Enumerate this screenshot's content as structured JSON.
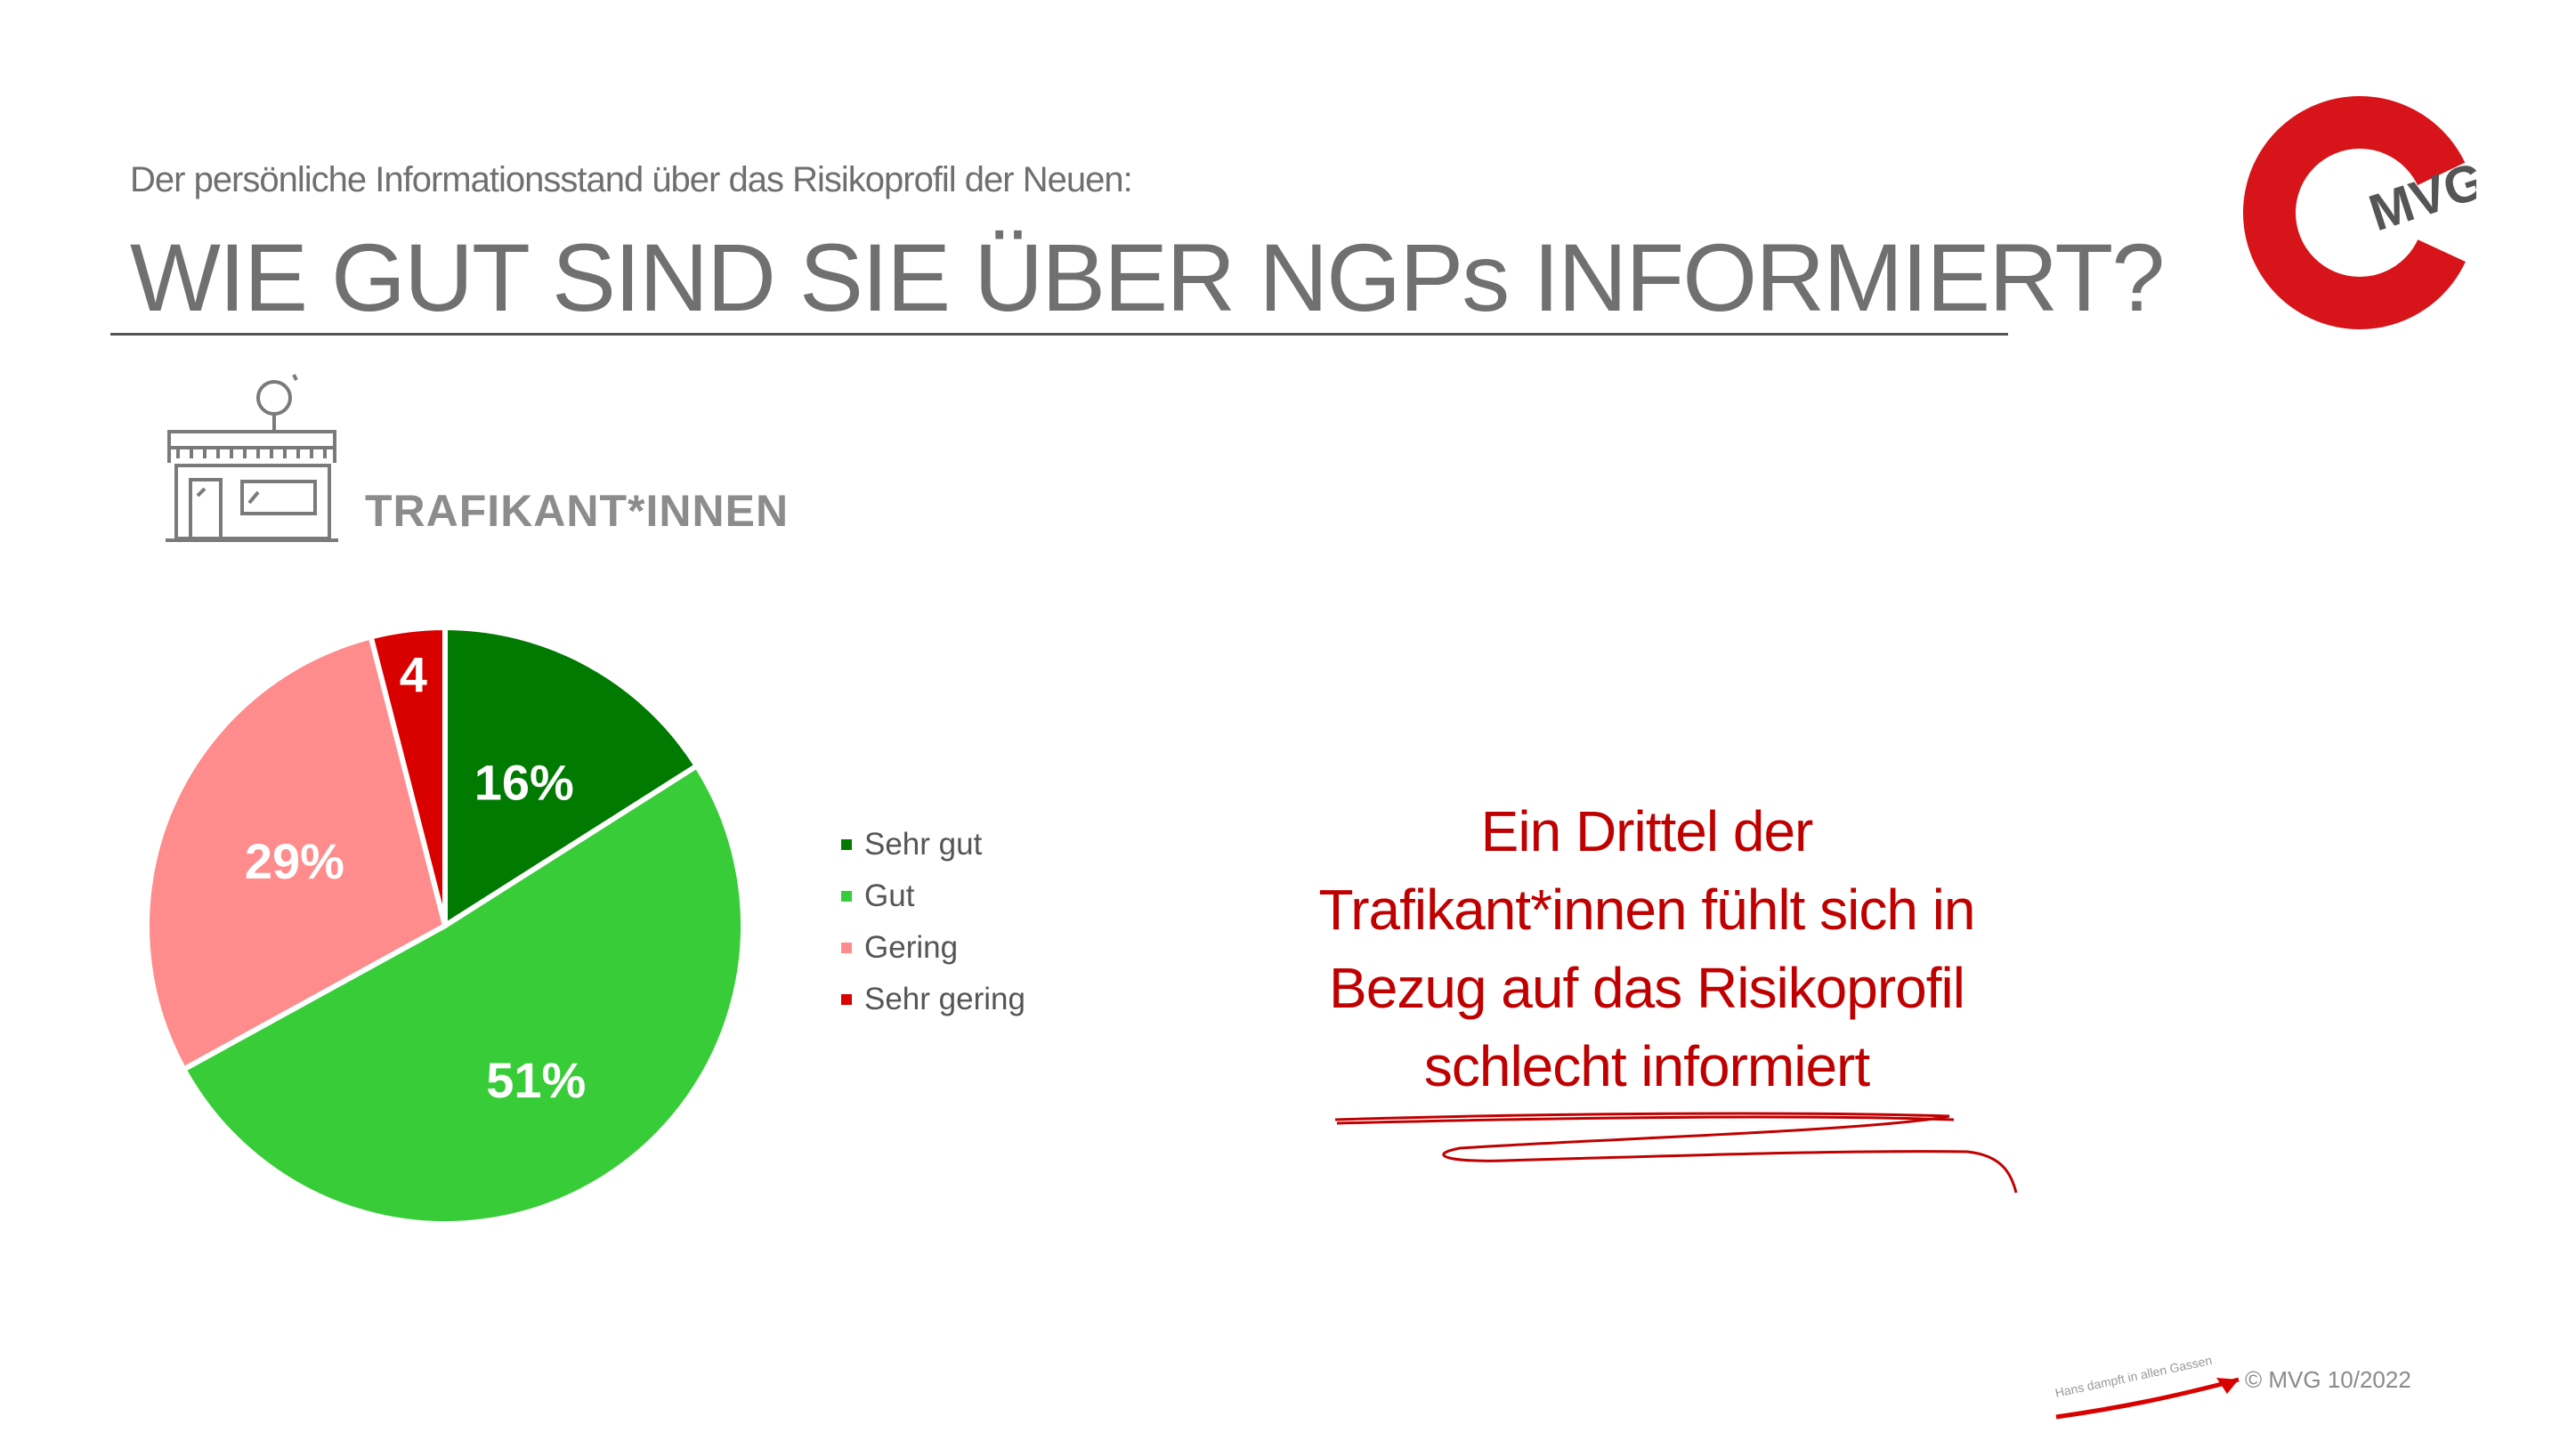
{
  "header": {
    "subtitle": "Der persönliche Informationsstand über das Risikoprofil der Neuen:",
    "title": "WIE GUT SIND SIE ÜBER NGPs INFORMIERT?"
  },
  "logo": {
    "text": "MVG",
    "color": "#d7141a"
  },
  "segment": {
    "label": "TRAFIKANT*INNEN",
    "icon": "shop-icon"
  },
  "chart_data": {
    "type": "pie",
    "categories": [
      "Sehr gut",
      "Gut",
      "Gering",
      "Sehr gering"
    ],
    "values": [
      16,
      51,
      29,
      4
    ],
    "data_labels": [
      "16%",
      "51%",
      "29%",
      "4"
    ],
    "colors": [
      "#007a00",
      "#38cc38",
      "#ff8c8c",
      "#d90000"
    ],
    "legend_position": "right"
  },
  "callout": {
    "lines": [
      "Ein Drittel der",
      "Trafikant*innen fühlt sich in",
      "Bezug auf das Risikoprofil",
      "schlecht informiert"
    ]
  },
  "footer": {
    "copyright": "© MVG 10/2022",
    "tagline": "Hans dampft in allen Gassen"
  }
}
